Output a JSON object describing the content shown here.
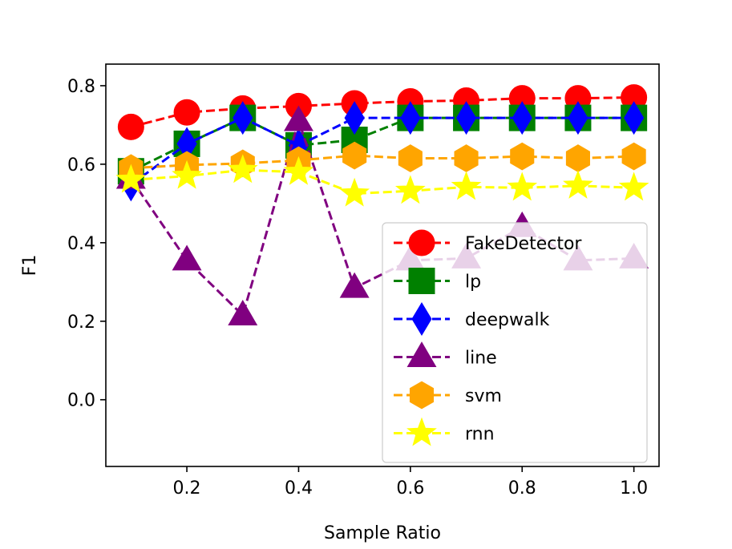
{
  "chart_data": {
    "type": "line",
    "title": "",
    "xlabel": "Sample Ratio",
    "ylabel": "F1",
    "xlim": [
      0.055,
      1.045
    ],
    "ylim": [
      -0.17,
      0.855
    ],
    "xticks": [
      0.2,
      0.4,
      0.6,
      0.8,
      1.0
    ],
    "xtick_labels": [
      "0.2",
      "0.4",
      "0.6",
      "0.8",
      "1.0"
    ],
    "yticks": [
      0.0,
      0.2,
      0.4,
      0.6,
      0.8
    ],
    "ytick_labels": [
      "0.0",
      "0.2",
      "0.4",
      "0.6",
      "0.8"
    ],
    "grid": false,
    "legend_position": "lower-right",
    "x": [
      0.1,
      0.2,
      0.3,
      0.4,
      0.5,
      0.6,
      0.7,
      0.8,
      0.9,
      1.0
    ],
    "series": [
      {
        "name": "FakeDetector",
        "color": "#ff0000",
        "marker": "circle",
        "values": [
          0.695,
          0.732,
          0.742,
          0.748,
          0.755,
          0.76,
          0.762,
          0.768,
          0.768,
          0.77
        ]
      },
      {
        "name": "lp",
        "color": "#008000",
        "marker": "square",
        "values": [
          0.582,
          0.652,
          0.718,
          0.648,
          0.662,
          0.718,
          0.718,
          0.718,
          0.718,
          0.718
        ]
      },
      {
        "name": "deepwalk",
        "color": "#0000ff",
        "marker": "diamond",
        "values": [
          0.548,
          0.652,
          0.718,
          0.648,
          0.718,
          0.718,
          0.718,
          0.718,
          0.718,
          0.718
        ]
      },
      {
        "name": "line",
        "color": "#800080",
        "marker": "triangle",
        "values": [
          0.563,
          0.355,
          0.215,
          0.71,
          0.285,
          0.355,
          0.36,
          0.44,
          0.355,
          0.36
        ]
      },
      {
        "name": "svm",
        "color": "#ffa500",
        "marker": "hexagon",
        "values": [
          0.59,
          0.598,
          0.602,
          0.61,
          0.622,
          0.615,
          0.615,
          0.62,
          0.615,
          0.62
        ]
      },
      {
        "name": "rnn",
        "color": "#ffff00",
        "marker": "star",
        "values": [
          0.56,
          0.57,
          0.585,
          0.58,
          0.525,
          0.532,
          0.542,
          0.54,
          0.545,
          0.54
        ]
      }
    ]
  }
}
